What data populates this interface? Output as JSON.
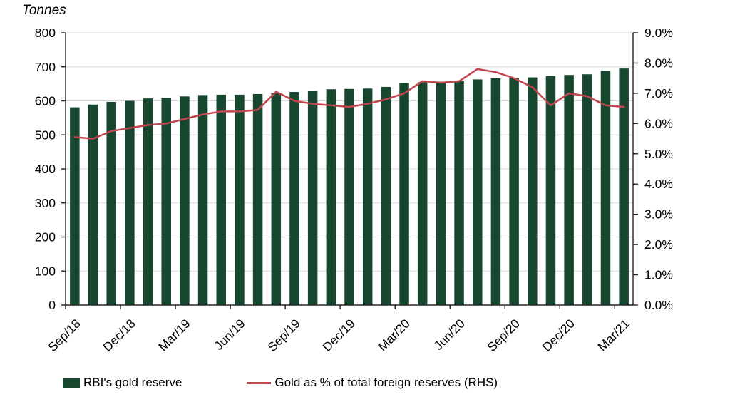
{
  "chart_data": {
    "type": "combo-bar-line",
    "left_axis": {
      "title": "Tonnes",
      "min": 0,
      "max": 800,
      "step": 100,
      "tick_labels": [
        "0",
        "100",
        "200",
        "300",
        "400",
        "500",
        "600",
        "700",
        "800"
      ]
    },
    "right_axis": {
      "min": 0,
      "max": 9,
      "step": 1,
      "tick_labels": [
        "0.0%",
        "1.0%",
        "2.0%",
        "3.0%",
        "4.0%",
        "5.0%",
        "6.0%",
        "7.0%",
        "8.0%",
        "9.0%"
      ]
    },
    "categories": [
      "Sep/18",
      "Oct/18",
      "Nov/18",
      "Dec/18",
      "Jan/19",
      "Feb/19",
      "Mar/19",
      "Apr/19",
      "May/19",
      "Jun/19",
      "Jul/19",
      "Aug/19",
      "Sep/19",
      "Oct/19",
      "Nov/19",
      "Dec/19",
      "Jan/20",
      "Feb/20",
      "Mar/20",
      "Apr/20",
      "May/20",
      "Jun/20",
      "Jul/20",
      "Aug/20",
      "Sep/20",
      "Oct/20",
      "Nov/20",
      "Dec/20",
      "Jan/21",
      "Feb/21",
      "Mar/21"
    ],
    "x_axis": {
      "label_every_n_months": 3,
      "shown_tick_labels": [
        "Sep/18",
        "Dec/18",
        "Mar/19",
        "Jun/19",
        "Sep/19",
        "Dec/19",
        "Mar/20",
        "Jun/20",
        "Sep/20",
        "Dec/20",
        "Mar/21"
      ]
    },
    "series": [
      {
        "name": "RBI's gold reserve",
        "type": "bar",
        "axis": "left",
        "unit": "tonnes",
        "color": "#17472F",
        "values": [
          581,
          589,
          597,
          600,
          607,
          609,
          613,
          617,
          618,
          618,
          620,
          622,
          626,
          629,
          634,
          635,
          636,
          641,
          653,
          655,
          656,
          658,
          663,
          666,
          668,
          669,
          673,
          676,
          678,
          688,
          695
        ]
      },
      {
        "name": "Gold as % of total foreign reserves (RHS)",
        "type": "line",
        "axis": "right",
        "unit": "%",
        "color": "#C2464F",
        "values": [
          5.55,
          5.5,
          5.75,
          5.85,
          5.95,
          6.0,
          6.15,
          6.3,
          6.4,
          6.4,
          6.45,
          7.05,
          6.75,
          6.65,
          6.6,
          6.55,
          6.65,
          6.8,
          7.0,
          7.4,
          7.35,
          7.4,
          7.8,
          7.7,
          7.5,
          7.2,
          6.6,
          7.0,
          6.9,
          6.6,
          6.55
        ]
      }
    ],
    "grid": {
      "horizontal": true,
      "color": "#D9D9D9"
    },
    "axis_line_color": "#262626",
    "legend_position": "bottom"
  }
}
